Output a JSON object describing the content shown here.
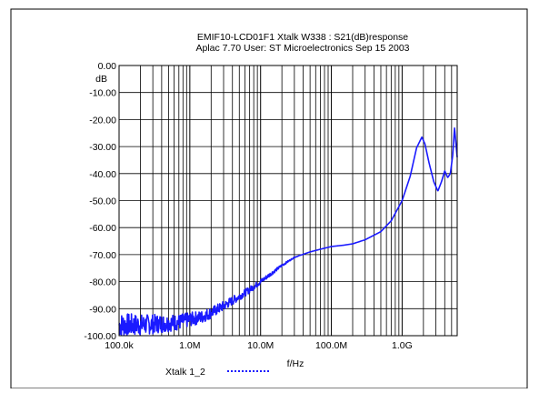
{
  "chart_data": {
    "type": "line",
    "title": "EMIF10-LCD01F1 Xtalk W338 : S21(dB)response",
    "subtitle": "Aplac 7.70 User: ST Microelectronics  Sep 15 2003",
    "ylabel": "dB",
    "xlabel": "f/Hz",
    "x_scale": "log",
    "xlim": [
      100000,
      6000000000
    ],
    "ylim": [
      -100,
      0
    ],
    "grid": true,
    "x_tick_labels": [
      "100.0k",
      "1.0M",
      "10.0M",
      "100.0M",
      "1.0G"
    ],
    "x_ticks": [
      100000,
      1000000,
      10000000,
      100000000,
      1000000000
    ],
    "y_tick_labels": [
      "0.00",
      "-10.00",
      "-20.00",
      "-30.00",
      "-40.00",
      "-50.00",
      "-60.00",
      "-70.00",
      "-80.00",
      "-90.00",
      "-100.00"
    ],
    "y_ticks": [
      0,
      -10,
      -20,
      -30,
      -40,
      -50,
      -60,
      -70,
      -80,
      -90,
      -100
    ],
    "legend_position": "bottom-left",
    "series": [
      {
        "name": "Xtalk 1_2",
        "color": "#1a1aff",
        "noise_floor_until": 3000000,
        "x": [
          100000,
          200000,
          400000,
          700000,
          1000000,
          1500000,
          2000000,
          3000000,
          5000000,
          7000000,
          10000000,
          15000000,
          20000000,
          30000000,
          50000000,
          70000000,
          100000000,
          150000000,
          200000000,
          300000000,
          500000000,
          700000000,
          1000000000,
          1300000000,
          1600000000,
          1900000000,
          2100000000,
          2400000000,
          2800000000,
          3200000000,
          3600000000,
          4000000000,
          4400000000,
          4800000000,
          5200000000,
          5500000000,
          6000000000
        ],
        "y": [
          -96,
          -96,
          -95.5,
          -95,
          -94,
          -93,
          -91.5,
          -89,
          -85.5,
          -83,
          -80,
          -76.5,
          -74,
          -71,
          -69,
          -68,
          -67,
          -66.5,
          -66,
          -64.5,
          -61.5,
          -57.5,
          -50,
          -41,
          -30.5,
          -26.5,
          -29,
          -36,
          -43,
          -46.5,
          -43,
          -39,
          -41.5,
          -40,
          -33,
          -23,
          -34
        ]
      }
    ]
  }
}
